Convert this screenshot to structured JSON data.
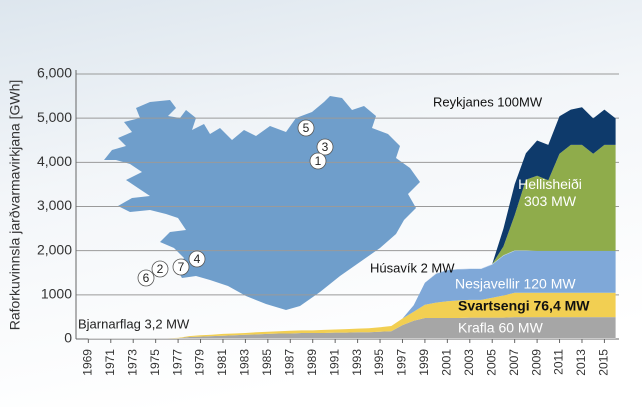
{
  "chart_data": {
    "type": "stacked_area",
    "y_label": "Raforkuvinnsla jarðvarmavirkjana [GWh]",
    "x": [
      1969,
      1970,
      1971,
      1972,
      1973,
      1974,
      1975,
      1976,
      1977,
      1978,
      1979,
      1980,
      1981,
      1982,
      1983,
      1984,
      1985,
      1986,
      1987,
      1988,
      1989,
      1990,
      1991,
      1992,
      1993,
      1994,
      1995,
      1996,
      1997,
      1998,
      1999,
      2000,
      2001,
      2002,
      2003,
      2004,
      2005,
      2006,
      2007,
      2008,
      2009,
      2010,
      2011,
      2012,
      2013,
      2014,
      2015,
      2016
    ],
    "xlim": [
      1967.9,
      2016.3
    ],
    "xticks": [
      1969,
      1971,
      1973,
      1975,
      1977,
      1979,
      1981,
      1983,
      1985,
      1987,
      1989,
      1991,
      1993,
      1995,
      1997,
      1999,
      2001,
      2003,
      2005,
      2007,
      2009,
      2011,
      2013,
      2015
    ],
    "ylim": [
      0,
      6000
    ],
    "yticks": [
      0,
      1000,
      {
        "value": 2000,
        "label": "2,000"
      },
      {
        "value": 3000,
        "label": "3,000"
      },
      {
        "value": 4000,
        "label": "4,000"
      },
      {
        "value": 5000,
        "label": "5,000"
      },
      {
        "value": 6000,
        "label": "6,000"
      }
    ],
    "grid": true,
    "series": [
      {
        "name": "Bjarnarflag 3,2 MW",
        "color": "#d0d0d0",
        "values": [
          15,
          15,
          15,
          15,
          15,
          15,
          15,
          15,
          15,
          15,
          15,
          15,
          15,
          15,
          15,
          15,
          15,
          15,
          15,
          15,
          15,
          15,
          15,
          15,
          15,
          15,
          15,
          15,
          15,
          15,
          15,
          15,
          15,
          15,
          15,
          15,
          15,
          15,
          15,
          15,
          15,
          15,
          15,
          15,
          15,
          15,
          15,
          15
        ]
      },
      {
        "name": "Krafla 60 MW",
        "color": "#a6a6a6",
        "values": [
          0,
          0,
          0,
          0,
          0,
          0,
          0,
          0,
          0,
          30,
          40,
          50,
          60,
          70,
          80,
          90,
          100,
          110,
          110,
          120,
          120,
          120,
          130,
          130,
          140,
          140,
          150,
          160,
          300,
          400,
          460,
          460,
          460,
          460,
          470,
          470,
          470,
          470,
          480,
          480,
          480,
          480,
          480,
          480,
          480,
          480,
          480,
          480
        ]
      },
      {
        "name": "Svartsengi 76,4 MW",
        "color": "#f2cf52",
        "values": [
          0,
          0,
          0,
          0,
          0,
          0,
          0,
          0,
          10,
          20,
          30,
          30,
          40,
          40,
          40,
          50,
          50,
          50,
          60,
          60,
          60,
          70,
          70,
          80,
          80,
          90,
          100,
          120,
          150,
          200,
          300,
          350,
          380,
          400,
          400,
          400,
          450,
          500,
          550,
          550,
          550,
          550,
          550,
          550,
          550,
          550,
          550,
          550
        ]
      },
      {
        "name": "Nesjavellir 120 MW",
        "color": "#7fa8d8",
        "values": [
          0,
          0,
          0,
          0,
          0,
          0,
          0,
          0,
          0,
          0,
          0,
          0,
          0,
          0,
          0,
          0,
          0,
          0,
          0,
          0,
          0,
          0,
          0,
          0,
          0,
          0,
          0,
          0,
          0,
          150,
          500,
          650,
          700,
          700,
          700,
          700,
          750,
          900,
          950,
          950,
          950,
          950,
          950,
          950,
          950,
          950,
          950,
          950
        ]
      },
      {
        "name": "Húsavík 2 MW",
        "color": "#b8d0ea",
        "values": [
          0,
          0,
          0,
          0,
          0,
          0,
          0,
          0,
          0,
          0,
          0,
          0,
          0,
          0,
          0,
          0,
          0,
          0,
          0,
          0,
          0,
          0,
          0,
          0,
          0,
          0,
          0,
          0,
          0,
          0,
          0,
          10,
          10,
          10,
          10,
          10,
          10,
          10,
          10,
          10,
          0,
          0,
          0,
          0,
          0,
          0,
          0,
          0
        ]
      },
      {
        "name": "Hellisheiði 303 MW",
        "color": "#8fac4b",
        "values": [
          0,
          0,
          0,
          0,
          0,
          0,
          0,
          0,
          0,
          0,
          0,
          0,
          0,
          0,
          0,
          0,
          0,
          0,
          0,
          0,
          0,
          0,
          0,
          0,
          0,
          0,
          0,
          0,
          0,
          0,
          0,
          0,
          0,
          0,
          0,
          0,
          0,
          200,
          800,
          1600,
          1700,
          1600,
          2200,
          2400,
          2400,
          2200,
          2400,
          2400
        ]
      },
      {
        "name": "Reykjanes 100MW",
        "color": "#0e3a6b",
        "values": [
          0,
          0,
          0,
          0,
          0,
          0,
          0,
          0,
          0,
          0,
          0,
          0,
          0,
          0,
          0,
          0,
          0,
          0,
          0,
          0,
          0,
          0,
          0,
          0,
          0,
          0,
          0,
          0,
          0,
          0,
          0,
          0,
          0,
          0,
          0,
          0,
          0,
          400,
          700,
          600,
          800,
          800,
          850,
          800,
          850,
          800,
          800,
          600
        ]
      }
    ],
    "map_labels": [
      "5",
      "3",
      "1",
      "4",
      "7",
      "2",
      "6"
    ]
  }
}
